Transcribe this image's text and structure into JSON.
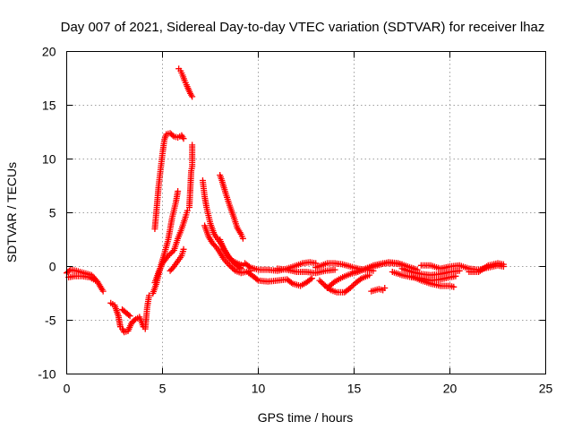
{
  "chart_data": {
    "type": "scatter",
    "title": "Day 007 of 2021, Sidereal Day-to-day VTEC variation (SDTVAR) for receiver lhaz",
    "xlabel": "GPS time / hours",
    "ylabel": "SDTVAR / TECUs",
    "xlim": [
      0,
      25
    ],
    "ylim": [
      -10,
      20
    ],
    "xticks": [
      0,
      5,
      10,
      15,
      20,
      25
    ],
    "yticks": [
      -10,
      -5,
      0,
      5,
      10,
      15,
      20
    ],
    "grid": true,
    "marker": "plus",
    "color": "#ff0000",
    "tracks": [
      {
        "name": "arc-early-a",
        "points": [
          [
            0.0,
            -0.6
          ],
          [
            0.2,
            -0.3
          ],
          [
            0.5,
            -0.4
          ],
          [
            0.9,
            -0.6
          ],
          [
            1.3,
            -0.8
          ],
          [
            1.6,
            -1.4
          ],
          [
            1.8,
            -2.0
          ],
          [
            1.9,
            -2.3
          ]
        ]
      },
      {
        "name": "arc-early-b",
        "points": [
          [
            0.1,
            -1.0
          ],
          [
            0.4,
            -0.9
          ],
          [
            0.8,
            -0.9
          ],
          [
            1.2,
            -1.0
          ],
          [
            1.5,
            -1.3
          ]
        ]
      },
      {
        "name": "arc-dip",
        "points": [
          [
            2.3,
            -3.4
          ],
          [
            2.5,
            -3.6
          ],
          [
            2.7,
            -4.6
          ],
          [
            2.8,
            -5.6
          ],
          [
            2.9,
            -5.8
          ],
          [
            3.0,
            -6.1
          ],
          [
            3.2,
            -6.0
          ],
          [
            3.4,
            -5.2
          ],
          [
            3.6,
            -4.9
          ],
          [
            3.8,
            -4.7
          ],
          [
            4.0,
            -5.6
          ],
          [
            4.1,
            -5.8
          ],
          [
            4.2,
            -3.8
          ],
          [
            4.3,
            -2.7
          ]
        ]
      },
      {
        "name": "arc-dip-b",
        "points": [
          [
            2.9,
            -4.0
          ],
          [
            3.1,
            -4.3
          ],
          [
            3.3,
            -4.6
          ]
        ]
      },
      {
        "name": "arc-peak",
        "points": [
          [
            4.6,
            3.5
          ],
          [
            4.7,
            5.5
          ],
          [
            4.8,
            7.5
          ],
          [
            4.9,
            9.0
          ],
          [
            5.0,
            10.5
          ],
          [
            5.1,
            11.8
          ],
          [
            5.2,
            12.3
          ],
          [
            5.4,
            12.4
          ],
          [
            5.6,
            12.1
          ],
          [
            5.8,
            12.0
          ],
          [
            6.0,
            12.2
          ],
          [
            6.1,
            11.9
          ]
        ]
      },
      {
        "name": "arc-high",
        "points": [
          [
            5.85,
            18.4
          ],
          [
            5.95,
            18.2
          ],
          [
            6.05,
            17.8
          ],
          [
            6.15,
            17.3
          ],
          [
            6.25,
            16.9
          ],
          [
            6.45,
            16.1
          ],
          [
            6.55,
            15.8
          ]
        ]
      },
      {
        "name": "arc-rise-a",
        "points": [
          [
            4.5,
            -2.5
          ],
          [
            4.7,
            -1.5
          ],
          [
            4.9,
            0.0
          ],
          [
            5.1,
            1.2
          ],
          [
            5.3,
            2.5
          ],
          [
            5.5,
            4.5
          ],
          [
            5.7,
            6.0
          ],
          [
            5.8,
            7.0
          ]
        ]
      },
      {
        "name": "arc-rise-b",
        "points": [
          [
            4.6,
            -1.5
          ],
          [
            4.8,
            -0.5
          ],
          [
            5.0,
            0.3
          ],
          [
            5.3,
            1.0
          ],
          [
            5.6,
            1.5
          ],
          [
            5.8,
            2.6
          ],
          [
            6.0,
            3.5
          ],
          [
            6.2,
            4.6
          ],
          [
            6.3,
            5.2
          ]
        ]
      },
      {
        "name": "arc-rise-c",
        "points": [
          [
            5.4,
            -0.4
          ],
          [
            5.6,
            0.0
          ],
          [
            5.8,
            0.5
          ],
          [
            6.0,
            1.0
          ],
          [
            6.1,
            1.6
          ]
        ]
      },
      {
        "name": "arc-spike",
        "points": [
          [
            6.4,
            5.5
          ],
          [
            6.5,
            8.9
          ],
          [
            6.55,
            9.3
          ],
          [
            6.55,
            11.3
          ]
        ]
      },
      {
        "name": "arc-decay-a",
        "points": [
          [
            7.1,
            8.0
          ],
          [
            7.2,
            6.5
          ],
          [
            7.3,
            5.5
          ],
          [
            7.5,
            4.0
          ],
          [
            7.7,
            3.0
          ],
          [
            7.9,
            2.5
          ],
          [
            8.1,
            2.0
          ],
          [
            8.4,
            1.0
          ],
          [
            8.6,
            0.6
          ],
          [
            8.9,
            0.3
          ],
          [
            9.2,
            0.1
          ]
        ]
      },
      {
        "name": "arc-decay-b",
        "points": [
          [
            7.2,
            3.8
          ],
          [
            7.4,
            2.8
          ],
          [
            7.6,
            2.2
          ],
          [
            7.8,
            1.8
          ],
          [
            8.0,
            1.3
          ],
          [
            8.2,
            0.7
          ],
          [
            8.5,
            0.1
          ],
          [
            8.8,
            -0.4
          ],
          [
            9.1,
            -0.6
          ],
          [
            9.6,
            -0.4
          ]
        ]
      },
      {
        "name": "arc-decay-c",
        "points": [
          [
            8.0,
            8.5
          ],
          [
            8.1,
            8.0
          ],
          [
            8.3,
            6.8
          ],
          [
            8.5,
            5.7
          ],
          [
            8.7,
            4.7
          ],
          [
            8.9,
            3.6
          ],
          [
            9.1,
            3.0
          ],
          [
            9.2,
            2.6
          ]
        ]
      },
      {
        "name": "arc-decay-d",
        "points": [
          [
            8.0,
            2.5
          ],
          [
            8.2,
            1.6
          ],
          [
            8.5,
            0.8
          ],
          [
            8.8,
            0.2
          ],
          [
            9.1,
            -0.2
          ]
        ]
      },
      {
        "name": "arc-flat-a",
        "points": [
          [
            9.3,
            0.3
          ],
          [
            9.6,
            -0.1
          ],
          [
            10.0,
            -0.3
          ],
          [
            10.5,
            -0.3
          ],
          [
            11.0,
            -0.4
          ],
          [
            11.5,
            -0.2
          ],
          [
            12.0,
            0.1
          ],
          [
            12.3,
            0.3
          ],
          [
            12.7,
            0.4
          ],
          [
            13.0,
            0.3
          ]
        ]
      },
      {
        "name": "arc-flat-b",
        "points": [
          [
            9.5,
            -0.6
          ],
          [
            9.8,
            -1.0
          ],
          [
            10.0,
            -1.3
          ],
          [
            10.5,
            -1.4
          ],
          [
            11.0,
            -1.3
          ],
          [
            11.5,
            -1.2
          ],
          [
            11.8,
            -1.6
          ],
          [
            12.2,
            -1.8
          ],
          [
            12.5,
            -1.5
          ],
          [
            12.8,
            -1.1
          ]
        ]
      },
      {
        "name": "arc-flat-c",
        "points": [
          [
            11.0,
            -0.2
          ],
          [
            11.5,
            -0.3
          ],
          [
            12.0,
            -0.5
          ],
          [
            12.5,
            -0.5
          ],
          [
            13.0,
            -0.6
          ],
          [
            13.5,
            -0.4
          ],
          [
            14.0,
            -0.3
          ]
        ]
      },
      {
        "name": "arc-mid-a",
        "points": [
          [
            13.0,
            -0.1
          ],
          [
            13.3,
            0.1
          ],
          [
            13.6,
            0.3
          ],
          [
            14.0,
            0.3
          ],
          [
            14.4,
            0.2
          ],
          [
            14.8,
            0.0
          ],
          [
            15.2,
            -0.2
          ],
          [
            15.6,
            -0.3
          ],
          [
            16.0,
            -0.4
          ]
        ]
      },
      {
        "name": "arc-mid-b",
        "points": [
          [
            13.2,
            -1.3
          ],
          [
            13.5,
            -1.8
          ],
          [
            13.8,
            -2.2
          ],
          [
            14.1,
            -2.4
          ],
          [
            14.5,
            -2.4
          ],
          [
            14.8,
            -2.0
          ],
          [
            15.1,
            -1.5
          ],
          [
            15.4,
            -1.1
          ],
          [
            15.8,
            -0.8
          ]
        ]
      },
      {
        "name": "arc-mid-c",
        "points": [
          [
            13.6,
            -2.0
          ],
          [
            14.0,
            -1.4
          ],
          [
            14.4,
            -1.0
          ],
          [
            14.8,
            -0.7
          ],
          [
            15.2,
            -0.5
          ],
          [
            15.6,
            -0.2
          ],
          [
            16.0,
            0.1
          ],
          [
            16.5,
            0.3
          ],
          [
            17.0,
            0.3
          ],
          [
            17.5,
            0.2
          ]
        ]
      },
      {
        "name": "arc-mid-d",
        "points": [
          [
            15.0,
            -0.5
          ],
          [
            15.5,
            -0.3
          ],
          [
            16.0,
            0.0
          ],
          [
            16.4,
            0.2
          ],
          [
            16.8,
            0.4
          ],
          [
            17.3,
            0.3
          ],
          [
            17.8,
            0.0
          ],
          [
            18.3,
            -0.3
          ]
        ]
      },
      {
        "name": "arc-short",
        "points": [
          [
            15.9,
            -2.3
          ],
          [
            16.1,
            -2.2
          ],
          [
            16.3,
            -2.1
          ],
          [
            16.5,
            -2.2
          ],
          [
            16.6,
            -2.0
          ]
        ]
      },
      {
        "name": "arc-late-a",
        "points": [
          [
            17.0,
            -0.5
          ],
          [
            17.5,
            -0.8
          ],
          [
            18.0,
            -1.0
          ],
          [
            18.5,
            -1.1
          ],
          [
            19.0,
            -1.3
          ],
          [
            19.5,
            -1.2
          ],
          [
            20.0,
            -1.0
          ],
          [
            20.3,
            -0.9
          ]
        ]
      },
      {
        "name": "arc-late-b",
        "points": [
          [
            17.5,
            -0.2
          ],
          [
            18.0,
            -0.5
          ],
          [
            18.5,
            -0.7
          ],
          [
            19.0,
            -0.8
          ],
          [
            19.5,
            -0.7
          ],
          [
            20.0,
            -0.5
          ],
          [
            20.5,
            -0.4
          ]
        ]
      },
      {
        "name": "arc-late-c",
        "points": [
          [
            18.0,
            -0.9
          ],
          [
            18.5,
            -1.3
          ],
          [
            19.0,
            -1.6
          ],
          [
            19.5,
            -1.8
          ],
          [
            20.0,
            -1.8
          ],
          [
            20.2,
            -1.9
          ]
        ]
      },
      {
        "name": "arc-late-d",
        "points": [
          [
            18.5,
            0.1
          ],
          [
            19.0,
            0.1
          ],
          [
            19.5,
            -0.2
          ],
          [
            20.0,
            0.0
          ],
          [
            20.5,
            0.1
          ],
          [
            21.0,
            -0.2
          ],
          [
            21.5,
            -0.3
          ],
          [
            22.0,
            -0.1
          ],
          [
            22.5,
            0.1
          ],
          [
            22.8,
            0.0
          ]
        ]
      },
      {
        "name": "arc-late-e",
        "points": [
          [
            21.0,
            -0.5
          ],
          [
            21.5,
            -0.5
          ],
          [
            22.0,
            0.1
          ],
          [
            22.5,
            0.3
          ],
          [
            22.8,
            0.2
          ]
        ]
      }
    ]
  }
}
